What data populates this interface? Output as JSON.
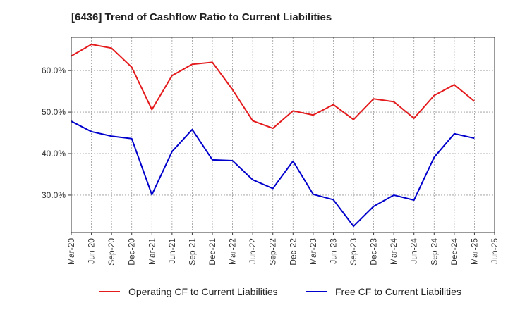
{
  "chart_data": {
    "type": "line",
    "title": "[6436]  Trend of Cashflow Ratio to Current Liabilities",
    "xlabel": "",
    "ylabel": "",
    "x": [
      "Mar-20",
      "Jun-20",
      "Sep-20",
      "Dec-20",
      "Mar-21",
      "Jun-21",
      "Sep-21",
      "Dec-21",
      "Mar-22",
      "Jun-22",
      "Sep-22",
      "Dec-22",
      "Mar-23",
      "Jun-23",
      "Sep-23",
      "Dec-23",
      "Mar-24",
      "Jun-24",
      "Sep-24",
      "Dec-24",
      "Mar-25",
      "Jun-25"
    ],
    "ylim": [
      21,
      68
    ],
    "yticks": [
      30,
      40,
      50,
      60
    ],
    "ytick_labels": [
      "30.0%",
      "40.0%",
      "50.0%",
      "60.0%"
    ],
    "grid": true,
    "legend_position": "bottom",
    "series": [
      {
        "name": "Operating CF to Current Liabilities",
        "color": "#e41a1c",
        "values": [
          63.5,
          66.3,
          65.4,
          60.8,
          50.6,
          58.8,
          61.5,
          62.0,
          55.4,
          47.9,
          46.1,
          50.3,
          49.3,
          51.8,
          48.2,
          53.2,
          52.5,
          48.5,
          54.0,
          56.6,
          52.6,
          null
        ]
      },
      {
        "name": "Free CF to Current Liabilities",
        "color": "#0000cc",
        "values": [
          47.8,
          45.3,
          44.2,
          43.6,
          30.1,
          40.5,
          45.8,
          38.5,
          38.3,
          33.7,
          31.6,
          38.2,
          30.2,
          28.9,
          22.5,
          27.3,
          30.0,
          28.8,
          39.1,
          44.8,
          43.7,
          null
        ]
      }
    ]
  }
}
